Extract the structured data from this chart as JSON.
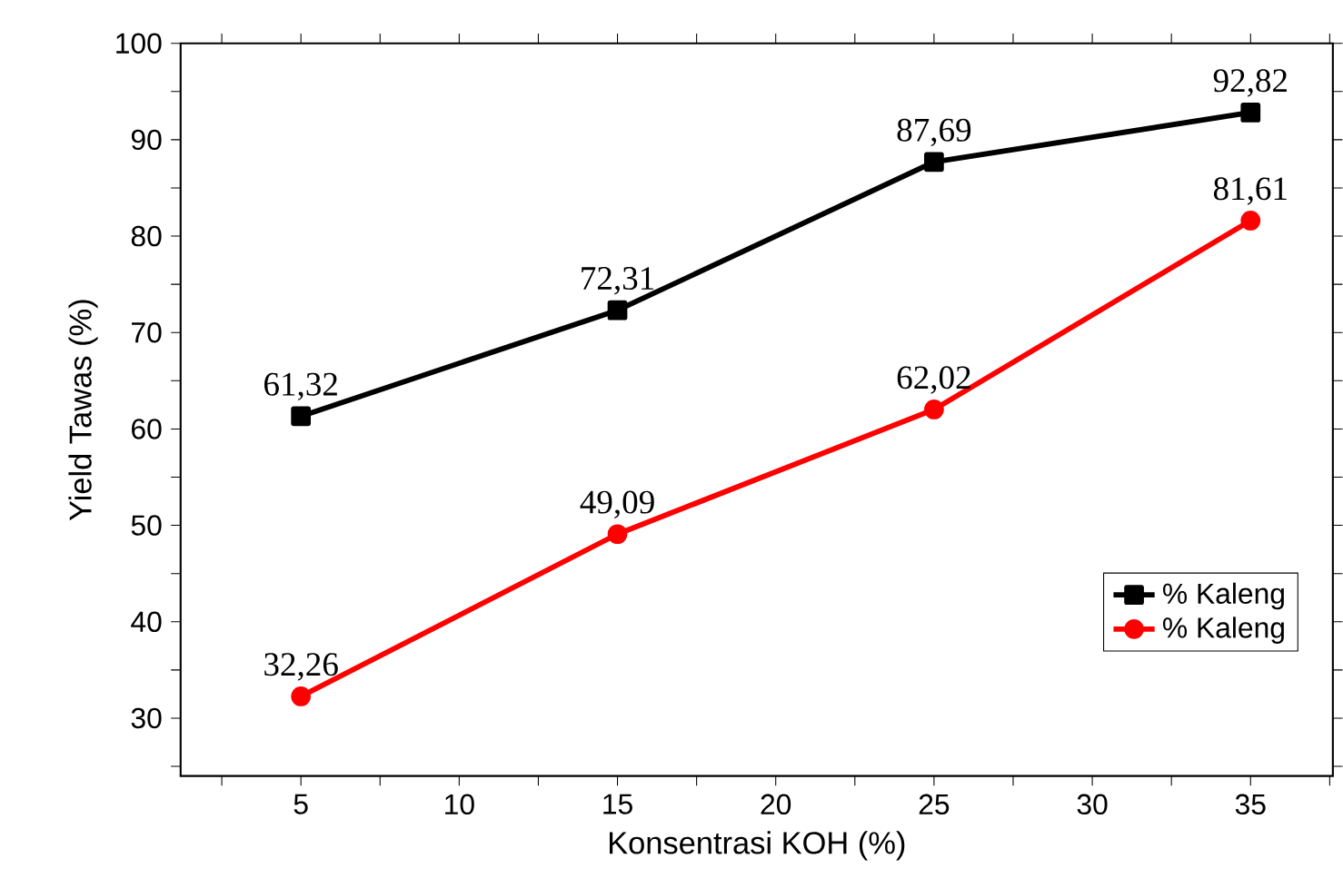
{
  "chart_data": {
    "type": "line",
    "xlabel": "Konsentrasi KOH (%)",
    "ylabel": "Yield Tawas (%)",
    "x": [
      5,
      15,
      25,
      35
    ],
    "series": [
      {
        "name": "% Kaleng",
        "color": "#000000",
        "marker": "square",
        "values": [
          61.32,
          72.31,
          87.69,
          92.82
        ],
        "value_labels": [
          "61,32",
          "72,31",
          "87,69",
          "92,82"
        ]
      },
      {
        "name": "% Kaleng",
        "color": "#ff0000",
        "marker": "circle",
        "values": [
          32.26,
          49.09,
          62.02,
          81.61
        ],
        "value_labels": [
          "32,26",
          "49,09",
          "62,02",
          "81,61"
        ]
      }
    ],
    "xlim": [
      1.2,
      37.6
    ],
    "ylim": [
      24,
      100
    ],
    "xticks": [
      {
        "value": 2.5,
        "label": null
      },
      5,
      {
        "value": 7.5,
        "label": null
      },
      10,
      {
        "value": 12.5,
        "label": null
      },
      15,
      {
        "value": 17.5,
        "label": null
      },
      20,
      {
        "value": 22.5,
        "label": null
      },
      25,
      {
        "value": 27.5,
        "label": null
      },
      30,
      {
        "value": 32.5,
        "label": null
      },
      35,
      {
        "value": 37.5,
        "label": null
      }
    ],
    "yticks": [
      {
        "value": 25,
        "label": null
      },
      30,
      {
        "value": 35,
        "label": null
      },
      40,
      {
        "value": 45,
        "label": null
      },
      50,
      {
        "value": 55,
        "label": null
      },
      60,
      {
        "value": 65,
        "label": null
      },
      70,
      {
        "value": 75,
        "label": null
      },
      80,
      {
        "value": 85,
        "label": null
      },
      90,
      {
        "value": 95,
        "label": null
      },
      100
    ],
    "legend": "bottom right",
    "grid": false,
    "line_style": "solid"
  }
}
